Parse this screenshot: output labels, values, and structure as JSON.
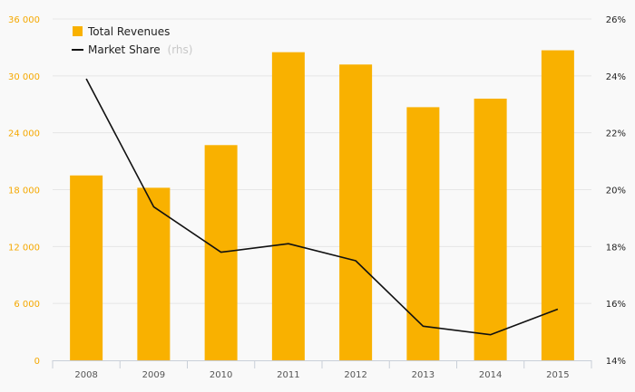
{
  "chart_data": {
    "type": "bar",
    "categories": [
      "2008",
      "2009",
      "2010",
      "2011",
      "2012",
      "2013",
      "2014",
      "2015"
    ],
    "series": [
      {
        "name": "Total Revenues",
        "type": "bar",
        "axis": "left",
        "color": "#f9b100",
        "values": [
          19500,
          18200,
          22700,
          32500,
          31200,
          26700,
          27600,
          32700
        ]
      },
      {
        "name": "Market Share",
        "type": "line",
        "axis": "right",
        "color": "#111111",
        "values": [
          0.239,
          0.194,
          0.178,
          0.181,
          0.175,
          0.152,
          0.149,
          0.158
        ]
      }
    ],
    "y_left": {
      "ylim": [
        0,
        36000
      ],
      "ticks": [
        0,
        6000,
        12000,
        18000,
        24000,
        30000,
        36000
      ],
      "tick_labels": [
        "0",
        "6 000",
        "12 000",
        "18 000",
        "24 000",
        "30 000",
        "36 000"
      ]
    },
    "y_right": {
      "ylim": [
        0.14,
        0.26
      ],
      "ticks": [
        0.14,
        0.16,
        0.18,
        0.2,
        0.22,
        0.24,
        0.26
      ],
      "tick_labels": [
        "14%",
        "16%",
        "18%",
        "20%",
        "22%",
        "24%",
        "26%"
      ]
    },
    "legend": {
      "placement": "top-left",
      "items": [
        {
          "label": "Total Revenues",
          "note": ""
        },
        {
          "label": "Market Share",
          "note": "(rhs)"
        }
      ]
    },
    "grid": true
  }
}
